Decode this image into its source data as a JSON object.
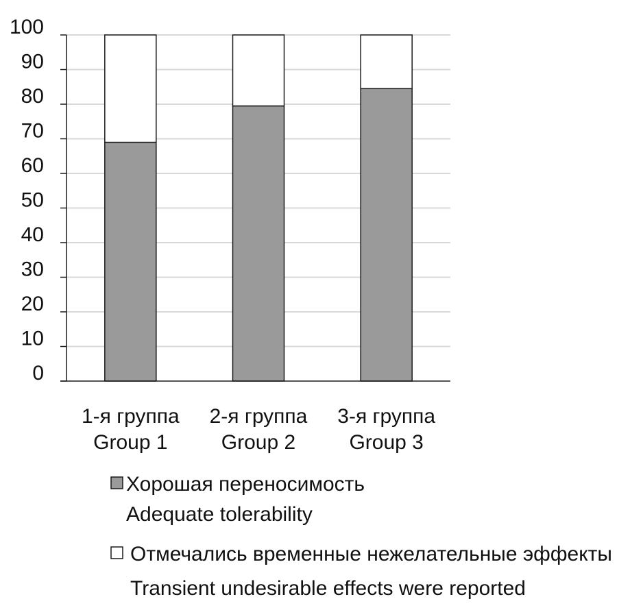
{
  "chart_data": {
    "type": "bar",
    "stacked": true,
    "categories": [
      [
        "1-я группа",
        "Group 1"
      ],
      [
        "2-я группа",
        "Group 2"
      ],
      [
        "3-я группа",
        "Group 3"
      ]
    ],
    "series": [
      {
        "name_lines": [
          "Хорошая переносимость",
          "Adequate tolerability"
        ],
        "values": [
          69,
          79.5,
          84.5
        ],
        "color": "#9a9a9a"
      },
      {
        "name_lines": [
          "Отмечались временные нежелательные эффекты",
          "Transient undesirable effects were reported"
        ],
        "values": [
          31,
          20.5,
          15.5
        ],
        "color": "#ffffff"
      }
    ],
    "ylim": [
      0,
      100
    ],
    "yticks": [
      0,
      10,
      20,
      30,
      40,
      50,
      60,
      70,
      80,
      90,
      100
    ],
    "grid": true,
    "legend_position": "bottom",
    "colors": {
      "grid": "#d9d9d9",
      "axis": "#1a1a1a",
      "bar_outline": "#1a1a1a"
    }
  }
}
